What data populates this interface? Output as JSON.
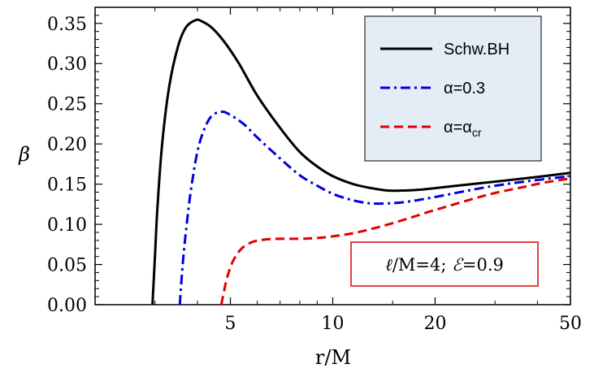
{
  "chart_data": {
    "type": "line",
    "xlabel": "r/M",
    "ylabel": "β",
    "x_scale": "log",
    "xlim": [
      2,
      50
    ],
    "ylim": [
      0,
      0.37
    ],
    "x_ticks": [
      {
        "value": 5,
        "label": "5"
      },
      {
        "value": 10,
        "label": "10"
      },
      {
        "value": 20,
        "label": "20"
      },
      {
        "value": 50,
        "label": "50"
      }
    ],
    "y_ticks": [
      {
        "value": 0.0,
        "label": "0.00"
      },
      {
        "value": 0.05,
        "label": "0.05"
      },
      {
        "value": 0.1,
        "label": "0.10"
      },
      {
        "value": 0.15,
        "label": "0.15"
      },
      {
        "value": 0.2,
        "label": "0.20"
      },
      {
        "value": 0.25,
        "label": "0.25"
      },
      {
        "value": 0.3,
        "label": "0.30"
      },
      {
        "value": 0.35,
        "label": "0.35"
      }
    ],
    "legend_position": "top-right",
    "annotation": {
      "parts": [
        "ℓ",
        "/M=4; ",
        "ℰ",
        "=0.9"
      ],
      "border_color": "#e00000"
    },
    "series": [
      {
        "name": "Schw.BH",
        "color": "#000000",
        "dash": "solid",
        "points": [
          [
            2.95,
            0.0
          ],
          [
            3.0,
            0.06
          ],
          [
            3.05,
            0.12
          ],
          [
            3.15,
            0.2
          ],
          [
            3.3,
            0.27
          ],
          [
            3.5,
            0.32
          ],
          [
            3.7,
            0.345
          ],
          [
            3.95,
            0.354
          ],
          [
            4.1,
            0.353
          ],
          [
            4.4,
            0.345
          ],
          [
            4.8,
            0.327
          ],
          [
            5.3,
            0.3
          ],
          [
            6.0,
            0.26
          ],
          [
            7.0,
            0.22
          ],
          [
            8.0,
            0.19
          ],
          [
            9.0,
            0.172
          ],
          [
            10.0,
            0.16
          ],
          [
            11.5,
            0.15
          ],
          [
            13.0,
            0.145
          ],
          [
            14.5,
            0.142
          ],
          [
            16.0,
            0.142
          ],
          [
            18.0,
            0.143
          ],
          [
            22.0,
            0.147
          ],
          [
            27.0,
            0.151
          ],
          [
            33.0,
            0.155
          ],
          [
            40.0,
            0.159
          ],
          [
            50.0,
            0.164
          ]
        ]
      },
      {
        "name": "α=0.3",
        "color": "#0000e0",
        "dash": "dashdot",
        "points": [
          [
            3.55,
            0.0
          ],
          [
            3.62,
            0.05
          ],
          [
            3.72,
            0.1
          ],
          [
            3.85,
            0.15
          ],
          [
            4.05,
            0.2
          ],
          [
            4.35,
            0.232
          ],
          [
            4.7,
            0.24
          ],
          [
            5.0,
            0.236
          ],
          [
            5.5,
            0.224
          ],
          [
            6.0,
            0.208
          ],
          [
            7.0,
            0.182
          ],
          [
            8.0,
            0.161
          ],
          [
            9.0,
            0.148
          ],
          [
            10.0,
            0.138
          ],
          [
            11.0,
            0.132
          ],
          [
            12.0,
            0.128
          ],
          [
            13.0,
            0.126
          ],
          [
            14.5,
            0.126
          ],
          [
            16.5,
            0.128
          ],
          [
            20.0,
            0.134
          ],
          [
            25.0,
            0.142
          ],
          [
            30.0,
            0.148
          ],
          [
            38.0,
            0.154
          ],
          [
            50.0,
            0.16
          ]
        ]
      },
      {
        "name": "α=α_cr",
        "color": "#e00000",
        "dash": "dashed",
        "points": [
          [
            4.7,
            0.0
          ],
          [
            4.78,
            0.015
          ],
          [
            4.9,
            0.035
          ],
          [
            5.1,
            0.055
          ],
          [
            5.4,
            0.07
          ],
          [
            5.8,
            0.078
          ],
          [
            6.3,
            0.081
          ],
          [
            7.0,
            0.082
          ],
          [
            8.0,
            0.082
          ],
          [
            9.0,
            0.083
          ],
          [
            10.0,
            0.085
          ],
          [
            11.5,
            0.089
          ],
          [
            13.5,
            0.096
          ],
          [
            16.0,
            0.105
          ],
          [
            19.0,
            0.115
          ],
          [
            22.0,
            0.123
          ],
          [
            26.0,
            0.132
          ],
          [
            30.0,
            0.139
          ],
          [
            36.0,
            0.146
          ],
          [
            42.0,
            0.152
          ],
          [
            50.0,
            0.157
          ]
        ]
      }
    ]
  }
}
